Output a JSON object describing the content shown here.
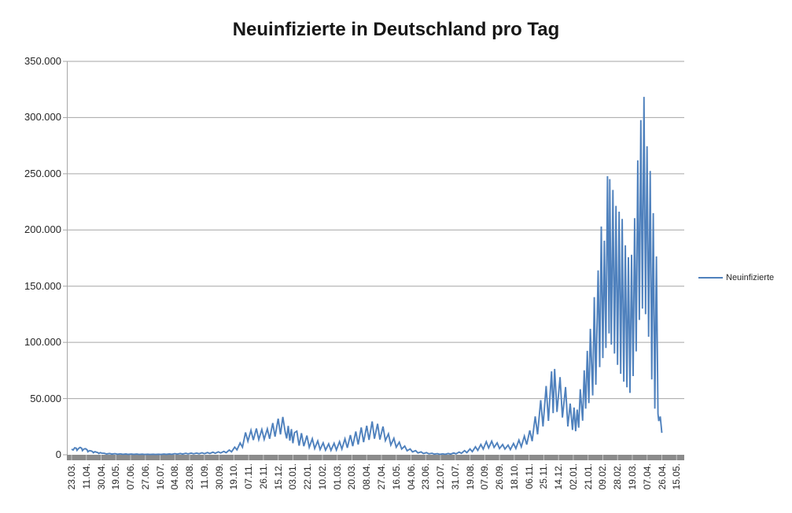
{
  "window": {
    "background": "#ffffff"
  },
  "chart_data": {
    "type": "line",
    "title": "Neuinfizierte in Deutschland pro Tag",
    "grid": true,
    "legend_position": "right",
    "colors": {
      "series_line": "#4F81BD",
      "gridline": "#A6A6A6",
      "axis_line": "#A6A6A6",
      "baseline_bar": "#8B8B8B",
      "baseline_tick": "#C9C9C9",
      "title_text": "#171717",
      "label_text": "#262626"
    },
    "y_axis": {
      "min": 0,
      "max": 350000,
      "step": 50000,
      "tick_labels_top_to_bottom": [
        "350.000",
        "300.000",
        "250.000",
        "200.000",
        "150.000",
        "100.000",
        "50.000",
        "0"
      ]
    },
    "x_axis": {
      "ticks_every_n_points": 19,
      "tick_labels": [
        "23.03.",
        "11.04.",
        "30.04.",
        "19.05.",
        "07.06.",
        "27.06.",
        "16.07.",
        "04.08.",
        "23.08.",
        "11.09.",
        "30.09.",
        "19.10.",
        "07.11.",
        "26.11.",
        "15.12.",
        "03.01.",
        "22.01.",
        "10.02.",
        "01.03.",
        "20.03.",
        "08.04.",
        "27.04.",
        "16.05.",
        "04.06.",
        "23.06.",
        "12.07.",
        "31.07.",
        "19.08.",
        "07.09.",
        "26.09.",
        "18.10.",
        "06.11.",
        "25.11.",
        "14.12.",
        "02.01.",
        "21.01.",
        "09.02.",
        "28.02.",
        "19.03.",
        "07.04.",
        "26.04.",
        "15.05."
      ]
    },
    "series": [
      {
        "name": "Neuinfizierte",
        "color": "#4F81BD",
        "x_unit": "day index from first category (23.03.)",
        "points_day_value": [
          [
            0,
            4900
          ],
          [
            2,
            4300
          ],
          [
            4,
            6200
          ],
          [
            6,
            5800
          ],
          [
            7,
            3900
          ],
          [
            9,
            5600
          ],
          [
            11,
            6600
          ],
          [
            13,
            5900
          ],
          [
            14,
            3700
          ],
          [
            16,
            5200
          ],
          [
            18,
            5400
          ],
          [
            20,
            4400
          ],
          [
            21,
            2700
          ],
          [
            23,
            3700
          ],
          [
            25,
            3500
          ],
          [
            27,
            2800
          ],
          [
            28,
            1800
          ],
          [
            30,
            2700
          ],
          [
            32,
            2300
          ],
          [
            34,
            1900
          ],
          [
            35,
            1200
          ],
          [
            37,
            1900
          ],
          [
            39,
            1500
          ],
          [
            42,
            1300
          ],
          [
            45,
            700
          ],
          [
            49,
            1100
          ],
          [
            52,
            600
          ],
          [
            56,
            950
          ],
          [
            59,
            500
          ],
          [
            63,
            850
          ],
          [
            66,
            450
          ],
          [
            70,
            750
          ],
          [
            73,
            350
          ],
          [
            77,
            650
          ],
          [
            80,
            350
          ],
          [
            84,
            600
          ],
          [
            87,
            300
          ],
          [
            91,
            550
          ],
          [
            94,
            300
          ],
          [
            98,
            500
          ],
          [
            101,
            250
          ],
          [
            105,
            480
          ],
          [
            108,
            260
          ],
          [
            112,
            520
          ],
          [
            115,
            300
          ],
          [
            119,
            620
          ],
          [
            122,
            350
          ],
          [
            126,
            750
          ],
          [
            129,
            420
          ],
          [
            133,
            950
          ],
          [
            136,
            550
          ],
          [
            140,
            1150
          ],
          [
            143,
            650
          ],
          [
            147,
            1350
          ],
          [
            150,
            750
          ],
          [
            154,
            1450
          ],
          [
            157,
            850
          ],
          [
            161,
            1550
          ],
          [
            164,
            900
          ],
          [
            168,
            1750
          ],
          [
            171,
            1000
          ],
          [
            175,
            1950
          ],
          [
            178,
            1150
          ],
          [
            182,
            2300
          ],
          [
            185,
            1350
          ],
          [
            189,
            2600
          ],
          [
            192,
            1600
          ],
          [
            196,
            3000
          ],
          [
            199,
            1900
          ],
          [
            203,
            4200
          ],
          [
            206,
            2600
          ],
          [
            210,
            6800
          ],
          [
            213,
            4400
          ],
          [
            217,
            10500
          ],
          [
            220,
            6800
          ],
          [
            224,
            19900
          ],
          [
            227,
            12100
          ],
          [
            231,
            21800
          ],
          [
            234,
            13100
          ],
          [
            238,
            23400
          ],
          [
            241,
            13500
          ],
          [
            245,
            22500
          ],
          [
            248,
            13700
          ],
          [
            252,
            23000
          ],
          [
            255,
            14200
          ],
          [
            259,
            28200
          ],
          [
            262,
            16100
          ],
          [
            266,
            32100
          ],
          [
            269,
            18100
          ],
          [
            272,
            33700
          ],
          [
            275,
            20200
          ],
          [
            277,
            14500
          ],
          [
            279,
            25700
          ],
          [
            281,
            12600
          ],
          [
            283,
            22800
          ],
          [
            285,
            10300
          ],
          [
            287,
            19600
          ],
          [
            290,
            21000
          ],
          [
            293,
            8100
          ],
          [
            296,
            19200
          ],
          [
            299,
            7600
          ],
          [
            303,
            17100
          ],
          [
            306,
            6600
          ],
          [
            310,
            14300
          ],
          [
            313,
            5600
          ],
          [
            317,
            12300
          ],
          [
            320,
            4600
          ],
          [
            324,
            10600
          ],
          [
            327,
            4100
          ],
          [
            331,
            9700
          ],
          [
            334,
            3900
          ],
          [
            338,
            10200
          ],
          [
            341,
            4300
          ],
          [
            345,
            11700
          ],
          [
            348,
            5100
          ],
          [
            352,
            14200
          ],
          [
            355,
            6200
          ],
          [
            359,
            17500
          ],
          [
            362,
            7700
          ],
          [
            366,
            20700
          ],
          [
            369,
            9100
          ],
          [
            373,
            24300
          ],
          [
            376,
            11200
          ],
          [
            380,
            25800
          ],
          [
            383,
            13200
          ],
          [
            387,
            29700
          ],
          [
            390,
            14300
          ],
          [
            394,
            27600
          ],
          [
            397,
            13600
          ],
          [
            401,
            25100
          ],
          [
            404,
            12700
          ],
          [
            408,
            18600
          ],
          [
            411,
            8700
          ],
          [
            415,
            14600
          ],
          [
            418,
            6700
          ],
          [
            422,
            11200
          ],
          [
            425,
            5100
          ],
          [
            429,
            7700
          ],
          [
            432,
            3600
          ],
          [
            436,
            5200
          ],
          [
            439,
            2600
          ],
          [
            443,
            3700
          ],
          [
            446,
            1600
          ],
          [
            450,
            2600
          ],
          [
            453,
            1100
          ],
          [
            457,
            1900
          ],
          [
            460,
            850
          ],
          [
            464,
            1300
          ],
          [
            467,
            550
          ],
          [
            471,
            950
          ],
          [
            474,
            420
          ],
          [
            478,
            850
          ],
          [
            481,
            440
          ],
          [
            485,
            1100
          ],
          [
            488,
            550
          ],
          [
            492,
            1600
          ],
          [
            495,
            850
          ],
          [
            499,
            2400
          ],
          [
            502,
            1300
          ],
          [
            506,
            3700
          ],
          [
            509,
            1900
          ],
          [
            513,
            5200
          ],
          [
            516,
            2800
          ],
          [
            520,
            7100
          ],
          [
            523,
            3900
          ],
          [
            527,
            9200
          ],
          [
            530,
            5100
          ],
          [
            534,
            11600
          ],
          [
            537,
            6100
          ],
          [
            541,
            12100
          ],
          [
            544,
            6600
          ],
          [
            548,
            10600
          ],
          [
            551,
            5600
          ],
          [
            555,
            9100
          ],
          [
            558,
            5100
          ],
          [
            562,
            8600
          ],
          [
            565,
            4600
          ],
          [
            569,
            10100
          ],
          [
            572,
            5600
          ],
          [
            576,
            13100
          ],
          [
            579,
            7100
          ],
          [
            583,
            16600
          ],
          [
            586,
            9100
          ],
          [
            590,
            21600
          ],
          [
            593,
            12100
          ],
          [
            597,
            34100
          ],
          [
            600,
            18100
          ],
          [
            604,
            48600
          ],
          [
            607,
            25100
          ],
          [
            611,
            61200
          ],
          [
            614,
            30200
          ],
          [
            618,
            74300
          ],
          [
            620,
            37000
          ],
          [
            622,
            76400
          ],
          [
            625,
            38100
          ],
          [
            629,
            69100
          ],
          [
            632,
            33100
          ],
          [
            636,
            60300
          ],
          [
            639,
            25200
          ],
          [
            642,
            45600
          ],
          [
            645,
            22100
          ],
          [
            647,
            42000
          ],
          [
            649,
            21000
          ],
          [
            651,
            40200
          ],
          [
            653,
            24100
          ],
          [
            655,
            58300
          ],
          [
            658,
            30300
          ],
          [
            660,
            75100
          ],
          [
            662,
            41000
          ],
          [
            664,
            92500
          ],
          [
            666,
            46000
          ],
          [
            668,
            112100
          ],
          [
            671,
            52800
          ],
          [
            673,
            140200
          ],
          [
            675,
            62300
          ],
          [
            678,
            164000
          ],
          [
            680,
            78000
          ],
          [
            682,
            203100
          ],
          [
            684,
            86000
          ],
          [
            686,
            190500
          ],
          [
            688,
            95000
          ],
          [
            690,
            247900
          ],
          [
            692,
            108000
          ],
          [
            693,
            245300
          ],
          [
            695,
            98000
          ],
          [
            697,
            235600
          ],
          [
            699,
            90000
          ],
          [
            701,
            221500
          ],
          [
            703,
            80000
          ],
          [
            705,
            216300
          ],
          [
            707,
            72000
          ],
          [
            709,
            209800
          ],
          [
            711,
            65000
          ],
          [
            713,
            186400
          ],
          [
            715,
            60000
          ],
          [
            717,
            175800
          ],
          [
            719,
            55000
          ],
          [
            721,
            178000
          ],
          [
            723,
            70000
          ],
          [
            725,
            210500
          ],
          [
            727,
            92000
          ],
          [
            729,
            262000
          ],
          [
            731,
            120000
          ],
          [
            733,
            297800
          ],
          [
            735,
            130000
          ],
          [
            737,
            318400
          ],
          [
            739,
            125000
          ],
          [
            741,
            274500
          ],
          [
            743,
            105000
          ],
          [
            745,
            252500
          ],
          [
            747,
            67000
          ],
          [
            749,
            215000
          ],
          [
            751,
            41000
          ],
          [
            753,
            176500
          ],
          [
            755,
            36500
          ],
          [
            756,
            30000
          ],
          [
            758,
            34000
          ],
          [
            760,
            19500
          ]
        ]
      }
    ]
  }
}
